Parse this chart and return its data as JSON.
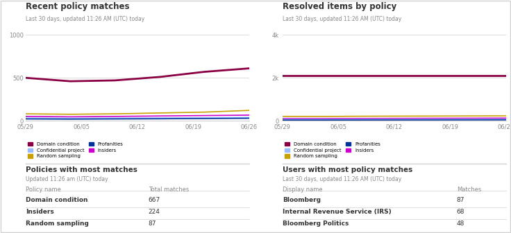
{
  "bg_color": "#ffffff",
  "border_color": "#d0d0d0",
  "text_color": "#333333",
  "subtitle_color": "#888888",
  "panel1_title": "Recent policy matches",
  "panel2_title": "Resolved items by policy",
  "panel3_title": "Policies with most matches",
  "panel4_title": "Users with most policy matches",
  "subtitle1": "Last 30 days, updated 11:26 AM (UTC) today",
  "subtitle2": "Last 30 days, updated 11:26 AM (UTC) today",
  "subtitle3": "Updated 11:26 am (UTC) today",
  "subtitle4": "Last 30 days, updated 11:26 AM (UTC) today",
  "x_labels": [
    "05/29",
    "06/05",
    "06/12",
    "06/19",
    "06/26"
  ],
  "x_ticks": [
    0,
    1,
    2,
    3,
    4
  ],
  "series_colors": {
    "Domain condition": "#8B0045",
    "Random sampling": "#C8A000",
    "Insiders": "#CC00CC",
    "Confidential project": "#99BBFF",
    "Profanities": "#003399"
  },
  "chart1_series": {
    "Domain condition": [
      500,
      460,
      470,
      510,
      570,
      610
    ],
    "Random sampling": [
      80,
      75,
      80,
      90,
      100,
      120
    ],
    "Insiders": [
      50,
      45,
      50,
      55,
      60,
      65
    ],
    "Confidential project": [
      30,
      28,
      30,
      32,
      35,
      38
    ],
    "Profanities": [
      20,
      18,
      20,
      22,
      25,
      28
    ]
  },
  "chart1_ylim": [
    0,
    1000
  ],
  "chart1_yticks": [
    0,
    500,
    1000
  ],
  "chart1_ytick_labels": [
    "0",
    "500",
    "1000"
  ],
  "chart2_series": {
    "Domain condition": [
      2100,
      2100,
      2100,
      2100,
      2100,
      2100
    ],
    "Random sampling": [
      200,
      200,
      210,
      215,
      220,
      225
    ],
    "Insiders": [
      100,
      100,
      105,
      110,
      115,
      120
    ],
    "Confidential project": [
      60,
      60,
      62,
      64,
      66,
      68
    ],
    "Profanities": [
      30,
      30,
      32,
      34,
      36,
      38
    ]
  },
  "chart2_ylim": [
    0,
    4000
  ],
  "chart2_yticks": [
    0,
    2000,
    4000
  ],
  "chart2_ytick_labels": [
    "0",
    "2k",
    "4k"
  ],
  "legend_items": [
    "Domain condition",
    "Confidential project",
    "Random sampling",
    "Profanities",
    "Insiders"
  ],
  "table1_headers": [
    "Policy name",
    "Total matches"
  ],
  "table1_rows": [
    [
      "Domain condition",
      "667"
    ],
    [
      "Insiders",
      "224"
    ],
    [
      "Random sampling",
      "87"
    ]
  ],
  "table2_headers": [
    "Display name",
    "Matches"
  ],
  "table2_rows": [
    [
      "Bloomberg",
      "87"
    ],
    [
      "Internal Revenue Service (IRS)",
      "68"
    ],
    [
      "Bloomberg Politics",
      "48"
    ]
  ]
}
